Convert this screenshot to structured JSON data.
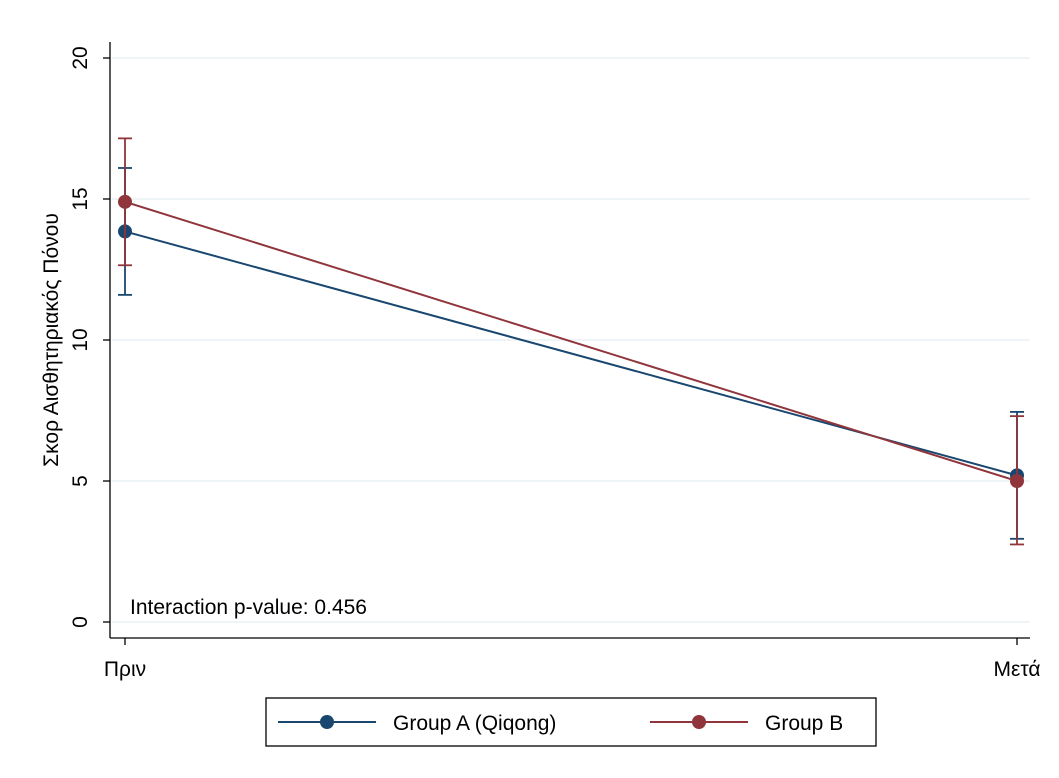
{
  "chart_data": {
    "type": "line",
    "ylabel": "Σκορ Αισθητηριακός Πόνου",
    "xlabel": "",
    "categories": [
      "Πριν",
      "Μετά"
    ],
    "ylim": [
      0,
      20
    ],
    "yticks": [
      0,
      5,
      10,
      15,
      20
    ],
    "grid": true,
    "legend_position": "bottom",
    "annotation": "Interaction p-value: 0.456",
    "series": [
      {
        "name": "Group A (Qiqong)",
        "color": "#1a476f",
        "values": [
          13.85,
          5.2
        ],
        "ci_low": [
          11.6,
          2.95
        ],
        "ci_high": [
          16.1,
          7.45
        ]
      },
      {
        "name": "Group B",
        "color": "#90353b",
        "values": [
          14.9,
          5.0
        ],
        "ci_low": [
          12.65,
          2.75
        ],
        "ci_high": [
          17.15,
          7.3
        ]
      }
    ]
  }
}
